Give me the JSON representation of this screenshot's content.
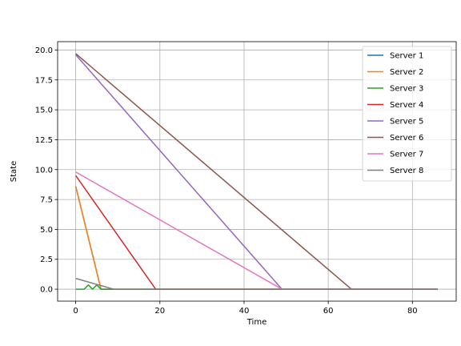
{
  "chart_data": {
    "type": "line",
    "title": "",
    "xlabel": "Time",
    "ylabel": "State",
    "xlim": [
      -4.3,
      90.4
    ],
    "ylim": [
      -1.0,
      20.7
    ],
    "xticks": [
      0,
      20,
      40,
      60,
      80
    ],
    "yticks": [
      0.0,
      2.5,
      5.0,
      7.5,
      10.0,
      12.5,
      15.0,
      17.5,
      20.0
    ],
    "ytick_labels": [
      "0.0",
      "2.5",
      "5.0",
      "7.5",
      "10.0",
      "12.5",
      "15.0",
      "17.5",
      "20.0"
    ],
    "grid": true,
    "legend_position": "top-right",
    "series": [
      {
        "name": "Server 1",
        "color": "#1f77b4",
        "x": [
          0,
          6,
          86
        ],
        "y": [
          8.6,
          0,
          0
        ]
      },
      {
        "name": "Server 2",
        "color": "#ff7f0e",
        "x": [
          0,
          6,
          86
        ],
        "y": [
          8.6,
          0,
          0
        ]
      },
      {
        "name": "Server 3",
        "color": "#2ca02c",
        "x": [
          0,
          2,
          3,
          4,
          5,
          6,
          7,
          86
        ],
        "y": [
          0,
          0,
          0.35,
          0,
          0.35,
          0,
          0,
          0
        ]
      },
      {
        "name": "Server 4",
        "color": "#d62728",
        "x": [
          0,
          19,
          86
        ],
        "y": [
          9.5,
          0,
          0
        ]
      },
      {
        "name": "Server 5",
        "color": "#9467bd",
        "x": [
          0,
          49,
          86
        ],
        "y": [
          19.6,
          0,
          0
        ]
      },
      {
        "name": "Server 6",
        "color": "#8c564b",
        "x": [
          0,
          65.5,
          86
        ],
        "y": [
          19.7,
          0,
          0
        ]
      },
      {
        "name": "Server 7",
        "color": "#e377c2",
        "x": [
          0,
          49,
          86
        ],
        "y": [
          9.8,
          0,
          0
        ]
      },
      {
        "name": "Server 8",
        "color": "#7f7f7f",
        "x": [
          0,
          9,
          86
        ],
        "y": [
          0.9,
          0,
          0
        ]
      }
    ]
  }
}
